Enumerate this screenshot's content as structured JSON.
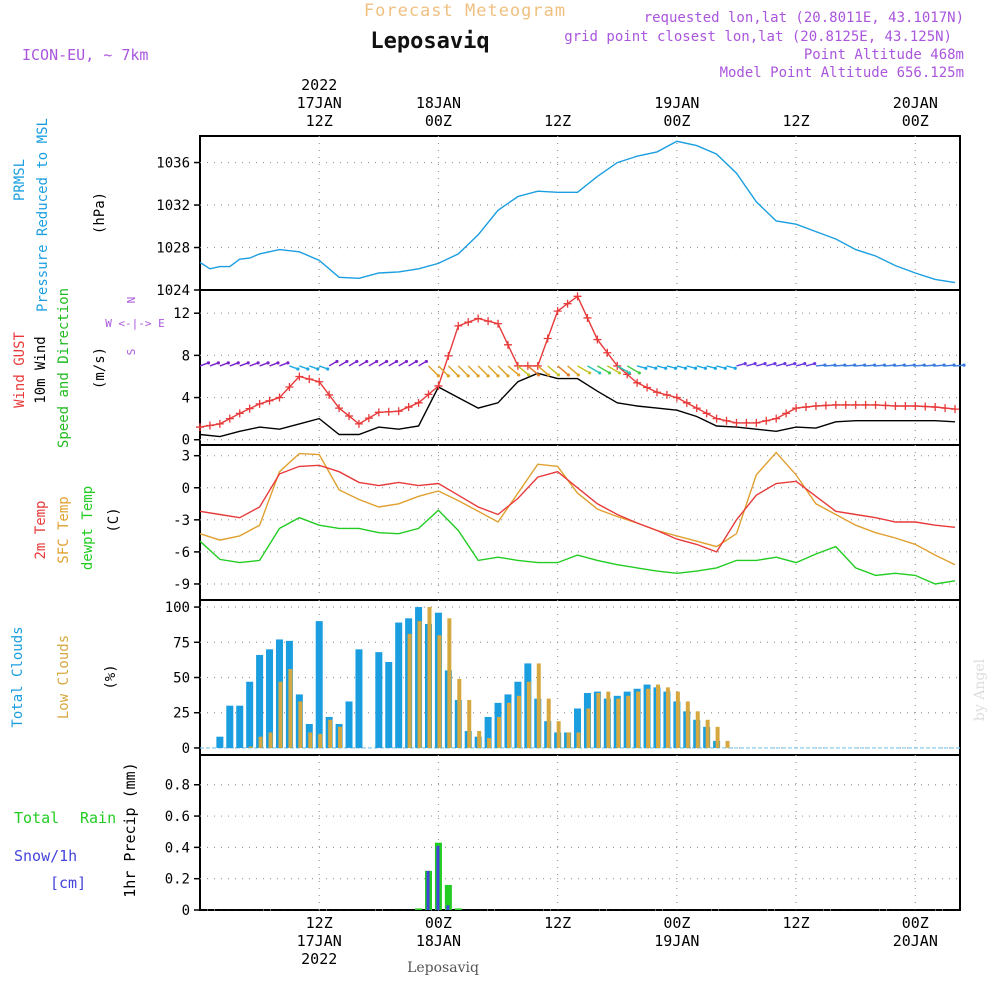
{
  "header": {
    "product": "Forecast Meteogram",
    "location": "Leposaviq",
    "model": "ICON-EU, ~ 7km",
    "requested": "requested lon,lat (20.8011E, 43.1017N)",
    "gridpoint": "grid point closest lon,lat (20.8125E, 43.125N)",
    "point_alt": "Point Altitude 468m",
    "model_alt": "Model Point Altitude 656.125m",
    "footer": "Leposaviq",
    "watermark": "by Angel"
  },
  "colors": {
    "pressure": "#1a9ee0",
    "gust": "#e83a3a",
    "wind": "#000000",
    "direction": "#22bb22",
    "temp2m": "#e83a3a",
    "sfc": "#e0a030",
    "dewpt": "#22cc22",
    "total_clouds": "#1a9ee0",
    "low_clouds": "#d6a840",
    "rain": "#22cc22",
    "snow": "#4444dd",
    "title": "#f0c080",
    "info": "#aa55dd"
  },
  "time_axis": {
    "top_labels": [
      {
        "h": 12,
        "lines": [
          "2022",
          "17JAN",
          "12Z"
        ]
      },
      {
        "h": 24,
        "lines": [
          "18JAN",
          "00Z"
        ]
      },
      {
        "h": 36,
        "lines": [
          "12Z"
        ]
      },
      {
        "h": 48,
        "lines": [
          "19JAN",
          "00Z"
        ]
      },
      {
        "h": 60,
        "lines": [
          "12Z"
        ]
      },
      {
        "h": 72,
        "lines": [
          "20JAN",
          "00Z"
        ]
      }
    ],
    "bottom_labels": [
      {
        "h": 12,
        "lines": [
          "12Z",
          "17JAN",
          "2022"
        ]
      },
      {
        "h": 24,
        "lines": [
          "00Z",
          "18JAN"
        ]
      },
      {
        "h": 36,
        "lines": [
          "12Z"
        ]
      },
      {
        "h": 48,
        "lines": [
          "00Z",
          "19JAN"
        ]
      },
      {
        "h": 60,
        "lines": [
          "12Z"
        ]
      },
      {
        "h": 72,
        "lines": [
          "00Z",
          "20JAN"
        ]
      }
    ]
  },
  "panels": {
    "pressure": {
      "labels": [
        "PRMSL",
        "Pressure Reduced to MSL"
      ],
      "unit": "(hPa)"
    },
    "wind": {
      "labels": [
        "Wind GUST",
        "10m Wind",
        "Speed and Direction"
      ],
      "unit": "(m/s)",
      "compass": [
        "N",
        "W <-|-> E",
        "S"
      ]
    },
    "temp": {
      "labels": [
        "2m Temp",
        "SFC Temp",
        "dewpt Temp"
      ],
      "unit": "(C)"
    },
    "clouds": {
      "labels": [
        "Total Clouds",
        "Low Clouds"
      ],
      "unit": "(%)"
    },
    "precip": {
      "labels": [
        "Total",
        "Rain",
        "Snow/1h",
        "[cm]"
      ],
      "ylabel": "1hr Precip (mm)"
    }
  },
  "chart_data": [
    {
      "type": "line",
      "title": "PRMSL Pressure Reduced to MSL",
      "ylabel": "(hPa)",
      "ylim": [
        1024,
        1038.5
      ],
      "yticks": [
        1024,
        1028,
        1032,
        1036
      ],
      "series": [
        {
          "name": "PRMSL",
          "x": [
            0,
            1,
            2,
            3,
            4,
            5,
            6,
            8,
            10,
            12,
            14,
            16,
            18,
            20,
            22,
            24,
            26,
            28,
            30,
            32,
            34,
            36,
            38,
            40,
            42,
            44,
            46,
            48,
            50,
            52,
            54,
            56,
            58,
            60,
            62,
            64,
            66,
            68,
            70,
            72,
            74,
            76
          ],
          "values": [
            1026.6,
            1026,
            1026.2,
            1026.2,
            1026.9,
            1027,
            1027.4,
            1027.8,
            1027.6,
            1026.8,
            1025.2,
            1025.1,
            1025.6,
            1025.7,
            1026,
            1026.5,
            1027.4,
            1029.2,
            1031.5,
            1032.8,
            1033.3,
            1033.2,
            1033.2,
            1034.7,
            1036,
            1036.6,
            1037,
            1038,
            1037.6,
            1036.8,
            1035,
            1032.3,
            1030.5,
            1030.2,
            1029.5,
            1028.8,
            1027.8,
            1027.2,
            1026.3,
            1025.6,
            1025,
            1024.7
          ]
        }
      ]
    },
    {
      "type": "line",
      "title": "Wind GUST, 10m Wind Speed and Direction",
      "ylabel": "(m/s)",
      "ylim": [
        -0.5,
        14.2
      ],
      "yticks": [
        0,
        4,
        8,
        12
      ],
      "series": [
        {
          "name": "Wind GUST",
          "x": [
            0,
            2,
            4,
            6,
            8,
            10,
            12,
            14,
            16,
            18,
            20,
            22,
            24,
            26,
            28,
            30,
            32,
            34,
            36,
            38,
            40,
            42,
            44,
            46,
            48,
            50,
            52,
            54,
            56,
            58,
            60,
            62,
            64,
            66,
            68,
            70,
            72,
            74,
            76
          ],
          "values": [
            1.2,
            1.5,
            2.5,
            3.4,
            4,
            6,
            5.5,
            3,
            1.5,
            2.6,
            2.7,
            3.5,
            5.1,
            10.8,
            11.5,
            11,
            7,
            7,
            12.2,
            13.6,
            9.5,
            7,
            5.4,
            4.5,
            4,
            3,
            2,
            1.6,
            1.6,
            2,
            3,
            3.2,
            3.3,
            3.3,
            3.3,
            3.2,
            3.2,
            3.1,
            2.9
          ]
        },
        {
          "name": "10m Wind",
          "x": [
            0,
            2,
            4,
            6,
            8,
            10,
            12,
            14,
            16,
            18,
            20,
            22,
            24,
            26,
            28,
            30,
            32,
            34,
            36,
            38,
            40,
            42,
            44,
            46,
            48,
            50,
            52,
            54,
            56,
            58,
            60,
            62,
            64,
            66,
            68,
            70,
            72,
            74,
            76
          ],
          "values": [
            0.5,
            0.3,
            0.8,
            1.2,
            1,
            1.5,
            2,
            0.5,
            0.5,
            1.2,
            1,
            1.3,
            5,
            4,
            3,
            3.5,
            5.5,
            6.3,
            5.8,
            5.8,
            4.6,
            3.5,
            3.2,
            3,
            2.8,
            2.2,
            1.3,
            1.2,
            1,
            0.8,
            1.2,
            1.1,
            1.7,
            1.8,
            1.8,
            1.8,
            1.8,
            1.8,
            1.7
          ]
        }
      ]
    },
    {
      "type": "line",
      "title": "2m Temp, SFC Temp, dewpt Temp",
      "ylabel": "(C)",
      "ylim": [
        -10.5,
        4
      ],
      "yticks": [
        -9,
        -6,
        -3,
        0,
        3
      ],
      "series": [
        {
          "name": "2m Temp",
          "x": [
            0,
            2,
            4,
            6,
            8,
            10,
            12,
            14,
            16,
            18,
            20,
            22,
            24,
            26,
            28,
            30,
            32,
            34,
            36,
            38,
            40,
            42,
            44,
            46,
            48,
            50,
            52,
            54,
            56,
            58,
            60,
            62,
            64,
            66,
            68,
            70,
            72,
            74,
            76
          ],
          "values": [
            -2.2,
            -2.5,
            -2.8,
            -1.8,
            1.3,
            2,
            2.1,
            1.5,
            0.5,
            0.2,
            0.5,
            0.2,
            0.4,
            -0.7,
            -1.8,
            -2.5,
            -1,
            1,
            1.5,
            0,
            -1.5,
            -2.5,
            -3.3,
            -4,
            -4.8,
            -5.3,
            -6,
            -3,
            -0.7,
            0.4,
            0.6,
            -0.8,
            -2.2,
            -2.5,
            -2.8,
            -3.2,
            -3.2,
            -3.5,
            -3.7
          ]
        },
        {
          "name": "SFC Temp",
          "x": [
            0,
            2,
            4,
            6,
            8,
            10,
            12,
            14,
            16,
            18,
            20,
            22,
            24,
            26,
            28,
            30,
            32,
            34,
            36,
            38,
            40,
            42,
            44,
            46,
            48,
            50,
            52,
            54,
            56,
            58,
            60,
            62,
            64,
            66,
            68,
            70,
            72,
            74,
            76
          ],
          "values": [
            -4.3,
            -4.9,
            -4.5,
            -3.5,
            1.5,
            3.2,
            3.1,
            -0.2,
            -1.1,
            -1.8,
            -1.5,
            -0.8,
            -0.3,
            -1.2,
            -2.2,
            -3.2,
            -0.5,
            2.2,
            2,
            -0.5,
            -2,
            -2.7,
            -3.3,
            -4,
            -4.5,
            -5,
            -5.5,
            -4.3,
            1.2,
            3.3,
            1.2,
            -1.5,
            -2.5,
            -3.5,
            -4.2,
            -4.7,
            -5.3,
            -6.3,
            -7.2
          ]
        },
        {
          "name": "dewpt Temp",
          "x": [
            0,
            2,
            4,
            6,
            8,
            10,
            12,
            14,
            16,
            18,
            20,
            22,
            24,
            26,
            28,
            30,
            32,
            34,
            36,
            38,
            40,
            42,
            44,
            46,
            48,
            50,
            52,
            54,
            56,
            58,
            60,
            62,
            64,
            66,
            68,
            70,
            72,
            74,
            76
          ],
          "values": [
            -5,
            -6.7,
            -7,
            -6.8,
            -3.8,
            -2.8,
            -3.5,
            -3.8,
            -3.8,
            -4.2,
            -4.3,
            -3.8,
            -2.1,
            -4,
            -6.8,
            -6.5,
            -6.8,
            -7,
            -7,
            -6.3,
            -6.8,
            -7.2,
            -7.5,
            -7.8,
            -8,
            -7.8,
            -7.5,
            -6.8,
            -6.8,
            -6.5,
            -7,
            -6.2,
            -5.5,
            -7.5,
            -8.2,
            -8,
            -8.2,
            -9,
            -8.7
          ]
        }
      ]
    },
    {
      "type": "bar",
      "title": "Total Clouds, Low Clouds",
      "ylabel": "(%)",
      "ylim": [
        -5,
        105
      ],
      "yticks": [
        0,
        25,
        50,
        75,
        100
      ],
      "x": [
        2,
        3,
        4,
        5,
        6,
        7,
        8,
        9,
        10,
        11,
        12,
        13,
        14,
        15,
        16,
        18,
        19,
        20,
        21,
        22,
        23,
        24,
        25,
        26,
        27,
        28,
        29,
        30,
        31,
        32,
        33,
        34,
        35,
        36,
        37,
        38,
        39,
        40,
        41,
        42,
        43,
        44,
        45,
        46,
        47,
        48,
        49,
        50,
        51,
        52,
        53
      ],
      "series": [
        {
          "name": "Total Clouds",
          "values": [
            8,
            30,
            30,
            47,
            66,
            70,
            77,
            76,
            38,
            17,
            90,
            22,
            17,
            33,
            70,
            68,
            61,
            89,
            92,
            100,
            88,
            96,
            55,
            34,
            12,
            8,
            22,
            32,
            38,
            47,
            60,
            35,
            19,
            11,
            11,
            28,
            39,
            40,
            35,
            37,
            40,
            42,
            45,
            43,
            40,
            33,
            26,
            20,
            15,
            5,
            0
          ]
        },
        {
          "name": "Low Clouds",
          "values": [
            0,
            0,
            0,
            1,
            8,
            11,
            47,
            56,
            33,
            11,
            10,
            20,
            15,
            0,
            0,
            0,
            0,
            0,
            81,
            90,
            100,
            80,
            92,
            49,
            34,
            12,
            7,
            22,
            32,
            37,
            47,
            60,
            35,
            19,
            11,
            11,
            28,
            39,
            40,
            35,
            37,
            40,
            42,
            45,
            43,
            40,
            33,
            26,
            20,
            15,
            5
          ]
        }
      ]
    },
    {
      "type": "bar",
      "title": "Total Rain Snow/1h",
      "ylabel": "1hr Precip (mm)",
      "ylim": [
        0,
        0.99
      ],
      "yticks": [
        0,
        0.2,
        0.4,
        0.6,
        0.8
      ],
      "x": [
        22,
        23,
        24,
        25,
        26
      ],
      "series": [
        {
          "name": "Total Rain",
          "values": [
            0.01,
            0.25,
            0.43,
            0.16,
            0.01
          ]
        },
        {
          "name": "Snow/1h",
          "values": [
            0,
            0.25,
            0.41,
            0.03,
            0
          ]
        }
      ]
    }
  ]
}
